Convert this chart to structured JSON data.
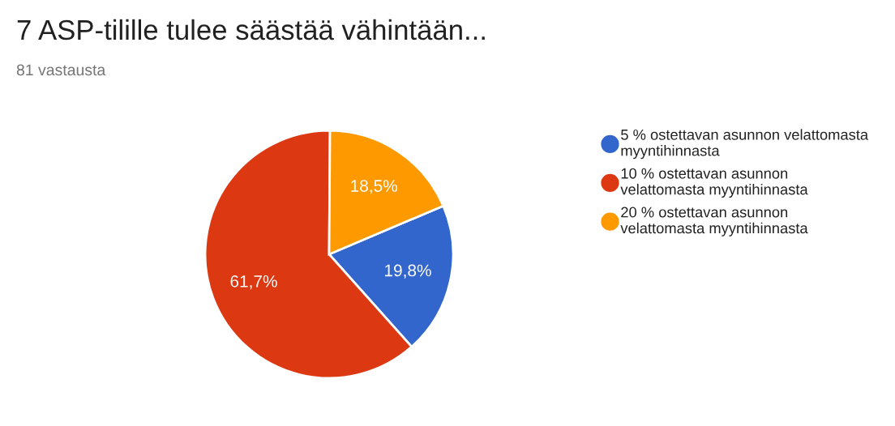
{
  "chart_data": {
    "type": "pie",
    "title": "7 ASP-tilille tulee säästää vähintään...",
    "subtitle": "81 vastausta",
    "categories": [
      "5 % ostettavan asunnon velattomasta\nmyyntihinnasta",
      "10 % ostettavan asunnon\nvelattomasta myyntihinnasta",
      "20 % ostettavan asunnon\nvelattomasta myyntihinnasta"
    ],
    "values": [
      19.8,
      61.7,
      18.5
    ],
    "value_labels": [
      "19,8%",
      "61,7%",
      "18,5%"
    ],
    "colors": [
      "#3366cc",
      "#dc3912",
      "#ff9900"
    ],
    "legend": "right"
  }
}
